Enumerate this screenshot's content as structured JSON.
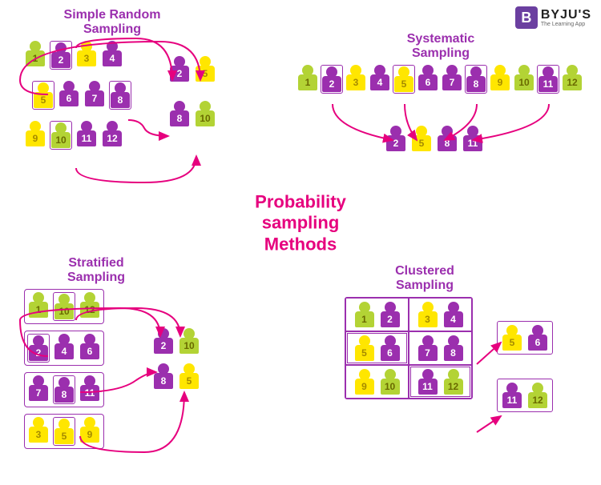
{
  "logo": {
    "icon": "B",
    "main": "BYJU'S",
    "sub": "The Learning App"
  },
  "center": {
    "l1": "Probability",
    "l2": "sampling",
    "l3": "Methods"
  },
  "colors": {
    "green": "#b3d335",
    "purple": "#9b2fae",
    "yellow": "#ffe600",
    "magenta": "#e6007e",
    "title": "#9b2fae"
  },
  "quadrants": {
    "srs": {
      "title": "Simple Random\nSampling",
      "rows": [
        [
          {
            "n": "1",
            "c": "green"
          },
          {
            "n": "2",
            "c": "purple",
            "box": true
          },
          {
            "n": "3",
            "c": "yellow"
          },
          {
            "n": "4",
            "c": "purple"
          }
        ],
        [
          {
            "n": "5",
            "c": "yellow",
            "box": true
          },
          {
            "n": "6",
            "c": "purple"
          },
          {
            "n": "7",
            "c": "purple"
          },
          {
            "n": "8",
            "c": "purple",
            "box": true
          }
        ],
        [
          {
            "n": "9",
            "c": "yellow"
          },
          {
            "n": "10",
            "c": "green",
            "box": true
          },
          {
            "n": "11",
            "c": "purple"
          },
          {
            "n": "12",
            "c": "purple"
          }
        ]
      ],
      "out": [
        [
          {
            "n": "2",
            "c": "purple"
          },
          {
            "n": "5",
            "c": "yellow"
          }
        ],
        [
          {
            "n": "8",
            "c": "purple"
          },
          {
            "n": "10",
            "c": "green"
          }
        ]
      ]
    },
    "sys": {
      "title": "Systematic\nSampling",
      "row": [
        {
          "n": "1",
          "c": "green"
        },
        {
          "n": "2",
          "c": "purple",
          "box": true
        },
        {
          "n": "3",
          "c": "yellow"
        },
        {
          "n": "4",
          "c": "purple"
        },
        {
          "n": "5",
          "c": "yellow",
          "box": true
        },
        {
          "n": "6",
          "c": "purple"
        },
        {
          "n": "7",
          "c": "purple"
        },
        {
          "n": "8",
          "c": "purple",
          "box": true
        },
        {
          "n": "9",
          "c": "yellow"
        },
        {
          "n": "10",
          "c": "green"
        },
        {
          "n": "11",
          "c": "purple",
          "box": true
        },
        {
          "n": "12",
          "c": "green"
        }
      ],
      "out": [
        {
          "n": "2",
          "c": "purple"
        },
        {
          "n": "5",
          "c": "yellow"
        },
        {
          "n": "8",
          "c": "purple"
        },
        {
          "n": "11",
          "c": "purple"
        }
      ]
    },
    "strat": {
      "title": "Stratified\nSampling",
      "groups": [
        [
          {
            "n": "1",
            "c": "green"
          },
          {
            "n": "10",
            "c": "green",
            "box": true
          },
          {
            "n": "12",
            "c": "green"
          }
        ],
        [
          {
            "n": "2",
            "c": "purple",
            "box": true
          },
          {
            "n": "4",
            "c": "purple"
          },
          {
            "n": "6",
            "c": "purple"
          }
        ],
        [
          {
            "n": "7",
            "c": "purple"
          },
          {
            "n": "8",
            "c": "purple",
            "box": true
          },
          {
            "n": "11",
            "c": "purple"
          }
        ],
        [
          {
            "n": "3",
            "c": "yellow"
          },
          {
            "n": "5",
            "c": "yellow",
            "box": true
          },
          {
            "n": "9",
            "c": "yellow"
          }
        ]
      ],
      "out": [
        [
          {
            "n": "2",
            "c": "purple"
          },
          {
            "n": "10",
            "c": "green"
          }
        ],
        [
          {
            "n": "8",
            "c": "purple"
          },
          {
            "n": "5",
            "c": "yellow"
          }
        ]
      ]
    },
    "clust": {
      "title": "Clustered\nSampling",
      "cells": [
        [
          {
            "n": "1",
            "c": "green"
          },
          {
            "n": "2",
            "c": "purple"
          }
        ],
        [
          {
            "n": "3",
            "c": "yellow"
          },
          {
            "n": "4",
            "c": "purple"
          }
        ],
        [
          {
            "n": "5",
            "c": "yellow"
          },
          {
            "n": "6",
            "c": "purple"
          }
        ],
        [
          {
            "n": "7",
            "c": "purple"
          },
          {
            "n": "8",
            "c": "purple"
          }
        ],
        [
          {
            "n": "9",
            "c": "yellow"
          },
          {
            "n": "10",
            "c": "green"
          }
        ],
        [
          {
            "n": "11",
            "c": "purple"
          },
          {
            "n": "12",
            "c": "green"
          }
        ]
      ],
      "selected_cells": [
        2,
        5
      ],
      "out": [
        [
          {
            "n": "5",
            "c": "yellow"
          },
          {
            "n": "6",
            "c": "purple"
          }
        ],
        [
          {
            "n": "11",
            "c": "purple"
          },
          {
            "n": "12",
            "c": "green"
          }
        ]
      ]
    }
  }
}
